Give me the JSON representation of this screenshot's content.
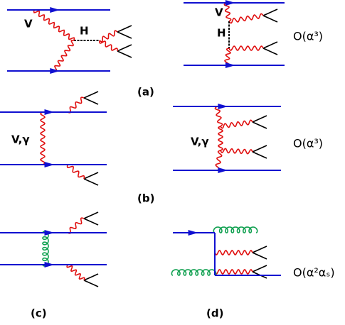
{
  "diagrams": [
    {
      "labels": [
        "V",
        "H"
      ]
    },
    {
      "labels": [
        "V",
        "H"
      ]
    },
    {
      "labels": [
        "V,γ"
      ]
    },
    {
      "labels": [
        "V,γ"
      ]
    },
    {
      "labels": []
    },
    {
      "labels": []
    }
  ],
  "captions": [
    "(a)",
    "(b)",
    "(c)",
    "(d)"
  ],
  "orders": [
    "O(α³)",
    "O(α³)",
    "O(α²αₛ)"
  ]
}
